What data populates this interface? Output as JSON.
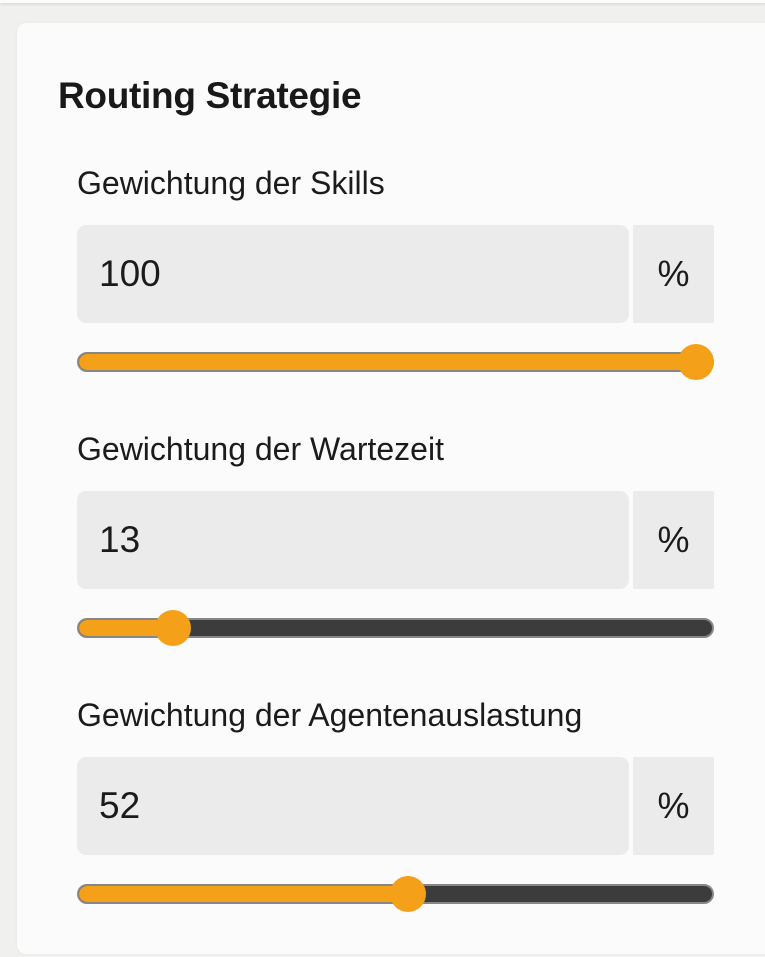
{
  "heading": {
    "title": "Routing Strategie"
  },
  "colors": {
    "accent": "#f4a019",
    "track_remainder": "#3c3c3c",
    "track_border": "#878787",
    "field_background": "#ebebeb"
  },
  "sections": [
    {
      "label": "Gewichtung der Skills",
      "value": "100",
      "unit": "%",
      "percent": 100
    },
    {
      "label": "Gewichtung der Wartezeit",
      "value": "13",
      "unit": "%",
      "percent": 13
    },
    {
      "label": "Gewichtung der Agentenauslastung",
      "value": "52",
      "unit": "%",
      "percent": 52
    }
  ]
}
